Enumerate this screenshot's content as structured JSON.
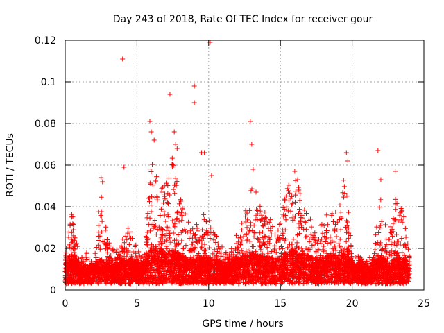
{
  "chart_data": {
    "type": "scatter",
    "title": "Day 243 of 2018, Rate Of TEC Index for receiver gour",
    "xlabel": "GPS time / hours",
    "ylabel": "ROTI / TECUs",
    "xlim": [
      0,
      25
    ],
    "ylim": [
      0,
      0.12
    ],
    "x_ticks": [
      0,
      5,
      10,
      15,
      20,
      25
    ],
    "x_tick_labels": [
      "0",
      "5",
      "10",
      "15",
      "20",
      "25"
    ],
    "y_ticks": [
      0,
      0.02,
      0.04,
      0.06,
      0.08,
      0.1,
      0.12
    ],
    "y_tick_labels": [
      "0",
      "0.02",
      "0.04",
      "0.06",
      "0.08",
      "0.1",
      "0.12"
    ],
    "grid": true,
    "marker": "+",
    "series_color": "#ff0000",
    "outliers": {
      "x": [
        4.0,
        7.3,
        9.0,
        9.0,
        10.1,
        9.5,
        12.9,
        13.0,
        21.8,
        22.0,
        23.0,
        4.1,
        5.9,
        6.0,
        6.2,
        7.6,
        7.7,
        7.8,
        9.7,
        10.2,
        13.1,
        13.3,
        16.0,
        16.2,
        19.6,
        19.7,
        2.5,
        2.6
      ],
      "y": [
        0.111,
        0.094,
        0.098,
        0.09,
        0.119,
        0.066,
        0.081,
        0.07,
        0.067,
        0.053,
        0.057,
        0.059,
        0.081,
        0.076,
        0.072,
        0.076,
        0.07,
        0.068,
        0.066,
        0.055,
        0.058,
        0.047,
        0.057,
        0.053,
        0.066,
        0.062,
        0.054,
        0.052
      ]
    },
    "envelope": {
      "x": [
        0,
        0.5,
        1,
        1.5,
        2,
        2.5,
        3,
        3.5,
        4,
        4.5,
        5,
        5.5,
        6,
        6.5,
        7,
        7.5,
        8,
        8.5,
        9,
        9.5,
        10,
        10.5,
        11,
        11.5,
        12,
        12.5,
        13,
        13.5,
        14,
        14.5,
        15,
        15.5,
        16,
        16.5,
        17,
        17.5,
        18,
        18.5,
        19,
        19.5,
        20,
        20.5,
        21,
        21.5,
        22,
        22.5,
        23,
        23.5,
        24
      ],
      "max": [
        0.022,
        0.038,
        0.016,
        0.018,
        0.012,
        0.054,
        0.024,
        0.018,
        0.026,
        0.032,
        0.02,
        0.016,
        0.062,
        0.055,
        0.05,
        0.065,
        0.045,
        0.034,
        0.03,
        0.04,
        0.034,
        0.028,
        0.02,
        0.018,
        0.028,
        0.04,
        0.054,
        0.045,
        0.04,
        0.03,
        0.036,
        0.05,
        0.056,
        0.048,
        0.036,
        0.026,
        0.034,
        0.048,
        0.036,
        0.058,
        0.018,
        0.016,
        0.014,
        0.018,
        0.05,
        0.022,
        0.044,
        0.04,
        0.018
      ],
      "typical": [
        0.009,
        0.012,
        0.008,
        0.008,
        0.008,
        0.01,
        0.009,
        0.008,
        0.01,
        0.01,
        0.009,
        0.009,
        0.014,
        0.014,
        0.012,
        0.013,
        0.012,
        0.01,
        0.01,
        0.011,
        0.01,
        0.01,
        0.009,
        0.009,
        0.01,
        0.011,
        0.012,
        0.011,
        0.011,
        0.01,
        0.011,
        0.012,
        0.013,
        0.012,
        0.011,
        0.01,
        0.01,
        0.012,
        0.011,
        0.012,
        0.009,
        0.009,
        0.008,
        0.009,
        0.011,
        0.009,
        0.01,
        0.01,
        0.009
      ]
    }
  }
}
